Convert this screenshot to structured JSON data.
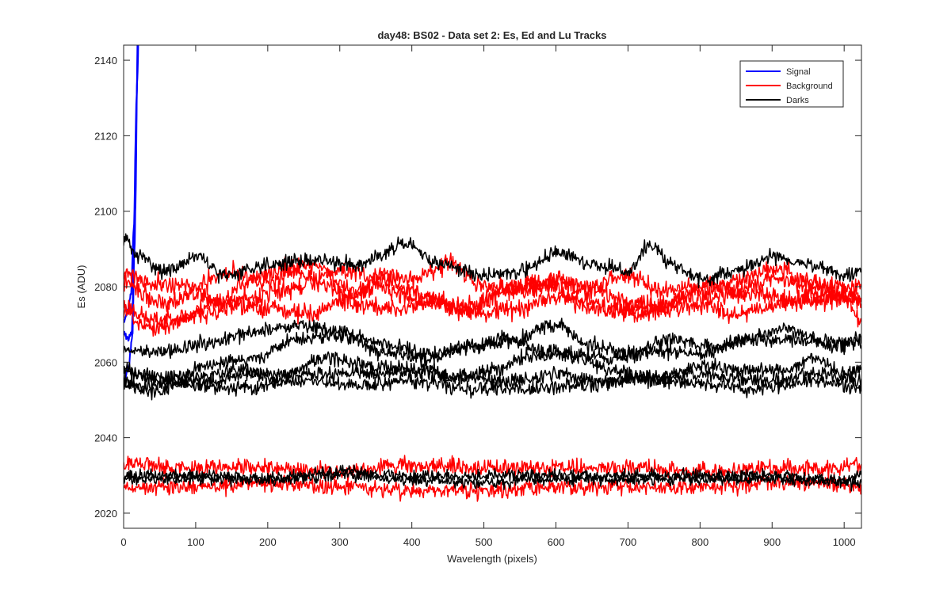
{
  "chart_data": {
    "type": "line",
    "title": "day48: BS02 - Data set 2: Es, Ed and Lu Tracks",
    "xlabel": "Wavelength (pixels)",
    "ylabel": "Es (ADU)",
    "xlim": [
      0,
      1024
    ],
    "ylim": [
      2016,
      2144
    ],
    "xticks": [
      0,
      100,
      200,
      300,
      400,
      500,
      600,
      700,
      800,
      900,
      1000
    ],
    "yticks": [
      2020,
      2040,
      2060,
      2080,
      2100,
      2120,
      2140
    ],
    "grid": false,
    "legend_position": "top-right",
    "legend": [
      {
        "label": "Signal",
        "color": "#0000ff"
      },
      {
        "label": "Background",
        "color": "#ff0000"
      },
      {
        "label": "Darks",
        "color": "#000000"
      }
    ],
    "series": [
      {
        "group": "Signal",
        "color": "#0000ff",
        "noise": 0.8,
        "seed": 11,
        "points": [
          [
            0,
            2071
          ],
          [
            5,
            2073
          ],
          [
            10,
            2078
          ],
          [
            14,
            2095
          ],
          [
            18,
            2130
          ],
          [
            21,
            2160
          ]
        ]
      },
      {
        "group": "Signal",
        "color": "#0000ff",
        "noise": 0.8,
        "seed": 12,
        "points": [
          [
            0,
            2068
          ],
          [
            6,
            2066
          ],
          [
            11,
            2068
          ],
          [
            15,
            2090
          ],
          [
            19,
            2135
          ],
          [
            22,
            2160
          ]
        ]
      },
      {
        "group": "Signal",
        "color": "#0000ff",
        "noise": 0.8,
        "seed": 13,
        "points": [
          [
            0,
            2055
          ],
          [
            6,
            2058
          ],
          [
            12,
            2066
          ],
          [
            16,
            2100
          ],
          [
            20,
            2150
          ],
          [
            23,
            2160
          ]
        ]
      },
      {
        "group": "Background",
        "color": "#ff0000",
        "noise": 2.0,
        "seed": 21,
        "points": [
          [
            0,
            2084
          ],
          [
            40,
            2081
          ],
          [
            100,
            2080
          ],
          [
            150,
            2084
          ],
          [
            200,
            2081
          ],
          [
            260,
            2086
          ],
          [
            320,
            2079
          ],
          [
            360,
            2083
          ],
          [
            400,
            2082
          ],
          [
            450,
            2086
          ],
          [
            500,
            2080
          ],
          [
            560,
            2079
          ],
          [
            600,
            2082
          ],
          [
            650,
            2080
          ],
          [
            700,
            2083
          ],
          [
            750,
            2079
          ],
          [
            800,
            2080
          ],
          [
            850,
            2079
          ],
          [
            900,
            2082
          ],
          [
            950,
            2080
          ],
          [
            1024,
            2080
          ]
        ]
      },
      {
        "group": "Background",
        "color": "#ff0000",
        "noise": 2.0,
        "seed": 22,
        "points": [
          [
            0,
            2081
          ],
          [
            50,
            2076
          ],
          [
            100,
            2078
          ],
          [
            150,
            2075
          ],
          [
            200,
            2074
          ],
          [
            260,
            2073
          ],
          [
            300,
            2076
          ],
          [
            350,
            2080
          ],
          [
            420,
            2076
          ],
          [
            480,
            2074
          ],
          [
            540,
            2080
          ],
          [
            600,
            2081
          ],
          [
            650,
            2079
          ],
          [
            700,
            2076
          ],
          [
            750,
            2075
          ],
          [
            800,
            2080
          ],
          [
            850,
            2081
          ],
          [
            900,
            2085
          ],
          [
            950,
            2082
          ],
          [
            1000,
            2078
          ],
          [
            1024,
            2070
          ]
        ]
      },
      {
        "group": "Background",
        "color": "#ff0000",
        "noise": 2.0,
        "seed": 23,
        "points": [
          [
            0,
            2075
          ],
          [
            40,
            2071
          ],
          [
            80,
            2072
          ],
          [
            130,
            2076
          ],
          [
            180,
            2082
          ],
          [
            230,
            2085
          ],
          [
            280,
            2080
          ],
          [
            330,
            2075
          ],
          [
            380,
            2074
          ],
          [
            430,
            2076
          ],
          [
            480,
            2075
          ],
          [
            530,
            2079
          ],
          [
            580,
            2081
          ],
          [
            630,
            2077
          ],
          [
            680,
            2074
          ],
          [
            740,
            2074
          ],
          [
            800,
            2075
          ],
          [
            850,
            2073
          ],
          [
            900,
            2075
          ],
          [
            960,
            2078
          ],
          [
            1024,
            2077
          ]
        ]
      },
      {
        "group": "Background",
        "color": "#ff0000",
        "noise": 2.0,
        "seed": 24,
        "points": [
          [
            0,
            2073
          ],
          [
            40,
            2069
          ],
          [
            100,
            2072
          ],
          [
            160,
            2076
          ],
          [
            220,
            2079
          ],
          [
            300,
            2084
          ],
          [
            360,
            2082
          ],
          [
            420,
            2077
          ],
          [
            480,
            2073
          ],
          [
            540,
            2074
          ],
          [
            600,
            2077
          ],
          [
            660,
            2074
          ],
          [
            720,
            2073
          ],
          [
            780,
            2076
          ],
          [
            840,
            2078
          ],
          [
            880,
            2078
          ],
          [
            940,
            2076
          ],
          [
            1000,
            2077
          ],
          [
            1024,
            2076
          ]
        ]
      },
      {
        "group": "Background",
        "color": "#ff0000",
        "noise": 1.8,
        "seed": 25,
        "points": [
          [
            0,
            2033
          ],
          [
            100,
            2032
          ],
          [
            200,
            2032
          ],
          [
            300,
            2031
          ],
          [
            400,
            2033
          ],
          [
            500,
            2032
          ],
          [
            600,
            2032
          ],
          [
            700,
            2032
          ],
          [
            800,
            2031
          ],
          [
            900,
            2032
          ],
          [
            1000,
            2032
          ],
          [
            1024,
            2033
          ]
        ]
      },
      {
        "group": "Background",
        "color": "#ff0000",
        "noise": 1.8,
        "seed": 26,
        "points": [
          [
            0,
            2027
          ],
          [
            100,
            2027
          ],
          [
            200,
            2028
          ],
          [
            300,
            2027
          ],
          [
            400,
            2026
          ],
          [
            500,
            2026
          ],
          [
            600,
            2027
          ],
          [
            700,
            2027
          ],
          [
            800,
            2027
          ],
          [
            900,
            2028
          ],
          [
            1000,
            2028
          ],
          [
            1024,
            2027
          ]
        ]
      },
      {
        "group": "Darks",
        "color": "#000000",
        "noise": 1.6,
        "seed": 31,
        "points": [
          [
            0,
            2093
          ],
          [
            20,
            2088
          ],
          [
            60,
            2084
          ],
          [
            100,
            2088
          ],
          [
            140,
            2083
          ],
          [
            200,
            2086
          ],
          [
            260,
            2087
          ],
          [
            320,
            2086
          ],
          [
            390,
            2091
          ],
          [
            440,
            2086
          ],
          [
            500,
            2083
          ],
          [
            550,
            2084
          ],
          [
            600,
            2089
          ],
          [
            650,
            2086
          ],
          [
            700,
            2084
          ],
          [
            730,
            2091
          ],
          [
            760,
            2086
          ],
          [
            800,
            2082
          ],
          [
            850,
            2084
          ],
          [
            900,
            2088
          ],
          [
            950,
            2086
          ],
          [
            1000,
            2083
          ],
          [
            1024,
            2084
          ]
        ]
      },
      {
        "group": "Darks",
        "color": "#000000",
        "noise": 1.6,
        "seed": 32,
        "points": [
          [
            0,
            2063
          ],
          [
            60,
            2063
          ],
          [
            120,
            2065
          ],
          [
            180,
            2068
          ],
          [
            240,
            2070
          ],
          [
            300,
            2068
          ],
          [
            360,
            2065
          ],
          [
            420,
            2062
          ],
          [
            480,
            2064
          ],
          [
            540,
            2066
          ],
          [
            580,
            2063
          ],
          [
            620,
            2062
          ],
          [
            680,
            2061
          ],
          [
            740,
            2063
          ],
          [
            800,
            2062
          ],
          [
            860,
            2066
          ],
          [
            920,
            2069
          ],
          [
            980,
            2065
          ],
          [
            1024,
            2065
          ]
        ]
      },
      {
        "group": "Darks",
        "color": "#000000",
        "noise": 1.6,
        "seed": 33,
        "points": [
          [
            0,
            2058
          ],
          [
            60,
            2056
          ],
          [
            120,
            2059
          ],
          [
            180,
            2061
          ],
          [
            240,
            2066
          ],
          [
            300,
            2067
          ],
          [
            360,
            2063
          ],
          [
            420,
            2061
          ],
          [
            480,
            2064
          ],
          [
            540,
            2066
          ],
          [
            600,
            2070
          ],
          [
            640,
            2065
          ],
          [
            700,
            2062
          ],
          [
            760,
            2066
          ],
          [
            820,
            2064
          ],
          [
            880,
            2066
          ],
          [
            940,
            2066
          ],
          [
            1000,
            2064
          ],
          [
            1024,
            2067
          ]
        ]
      },
      {
        "group": "Darks",
        "color": "#000000",
        "noise": 1.6,
        "seed": 34,
        "points": [
          [
            0,
            2055
          ],
          [
            40,
            2052
          ],
          [
            100,
            2056
          ],
          [
            160,
            2058
          ],
          [
            220,
            2056
          ],
          [
            280,
            2061
          ],
          [
            340,
            2059
          ],
          [
            400,
            2058
          ],
          [
            460,
            2056
          ],
          [
            520,
            2058
          ],
          [
            560,
            2062
          ],
          [
            620,
            2062
          ],
          [
            680,
            2058
          ],
          [
            740,
            2055
          ],
          [
            800,
            2059
          ],
          [
            860,
            2058
          ],
          [
            920,
            2058
          ],
          [
            960,
            2061
          ],
          [
            1000,
            2057
          ],
          [
            1024,
            2058
          ]
        ]
      },
      {
        "group": "Darks",
        "color": "#000000",
        "noise": 1.6,
        "seed": 35,
        "points": [
          [
            0,
            2057
          ],
          [
            60,
            2055
          ],
          [
            120,
            2055
          ],
          [
            180,
            2057
          ],
          [
            240,
            2057
          ],
          [
            300,
            2057
          ],
          [
            360,
            2057
          ],
          [
            420,
            2058
          ],
          [
            480,
            2056
          ],
          [
            540,
            2055
          ],
          [
            600,
            2057
          ],
          [
            660,
            2055
          ],
          [
            720,
            2056
          ],
          [
            780,
            2057
          ],
          [
            840,
            2056
          ],
          [
            900,
            2055
          ],
          [
            960,
            2057
          ],
          [
            1024,
            2055
          ]
        ]
      },
      {
        "group": "Darks",
        "color": "#000000",
        "noise": 1.6,
        "seed": 36,
        "points": [
          [
            0,
            2054
          ],
          [
            80,
            2054
          ],
          [
            160,
            2053
          ],
          [
            240,
            2055
          ],
          [
            320,
            2054
          ],
          [
            400,
            2055
          ],
          [
            480,
            2053
          ],
          [
            560,
            2053
          ],
          [
            640,
            2054
          ],
          [
            720,
            2056
          ],
          [
            800,
            2054
          ],
          [
            880,
            2053
          ],
          [
            960,
            2055
          ],
          [
            1024,
            2053
          ]
        ]
      },
      {
        "group": "Darks",
        "color": "#000000",
        "noise": 1.3,
        "seed": 37,
        "points": [
          [
            0,
            2030
          ],
          [
            100,
            2030
          ],
          [
            200,
            2029
          ],
          [
            300,
            2031
          ],
          [
            400,
            2030
          ],
          [
            500,
            2030
          ],
          [
            600,
            2030
          ],
          [
            700,
            2030
          ],
          [
            800,
            2030
          ],
          [
            900,
            2030
          ],
          [
            1000,
            2029
          ],
          [
            1024,
            2030
          ]
        ]
      },
      {
        "group": "Darks",
        "color": "#000000",
        "noise": 1.3,
        "seed": 38,
        "points": [
          [
            0,
            2029
          ],
          [
            100,
            2029
          ],
          [
            200,
            2029
          ],
          [
            300,
            2030
          ],
          [
            400,
            2029
          ],
          [
            500,
            2028
          ],
          [
            600,
            2029
          ],
          [
            700,
            2029
          ],
          [
            800,
            2029
          ],
          [
            900,
            2029
          ],
          [
            1000,
            2028
          ],
          [
            1024,
            2028
          ]
        ]
      }
    ]
  }
}
